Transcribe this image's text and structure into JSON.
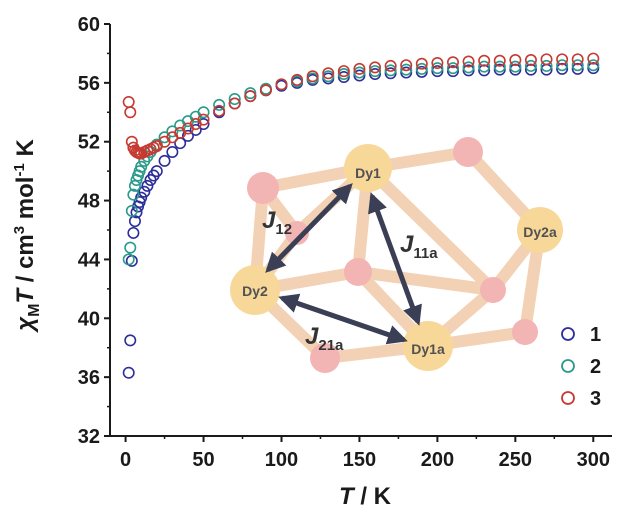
{
  "chart_data": {
    "type": "scatter",
    "xlabel": {
      "italic": "T",
      "rest": " / K"
    },
    "ylabel": {
      "chi": "χ",
      "chi_sub": "M",
      "T": "T",
      "unit_a": " / cm",
      "sup3": "3",
      "unit_b": " mol",
      "supm1": "-1",
      "unit_c": " K"
    },
    "xlim": [
      -10,
      312
    ],
    "ylim": [
      32,
      60
    ],
    "xticks": [
      0,
      50,
      100,
      150,
      200,
      250,
      300
    ],
    "yticks": [
      32,
      36,
      40,
      44,
      48,
      52,
      56,
      60
    ],
    "grid": false,
    "legend_position": "bottom-right",
    "series": [
      {
        "name": "1",
        "color": "#2e2e9a",
        "x": [
          2,
          3,
          4,
          5,
          6,
          7,
          8,
          9,
          10,
          12,
          14,
          16,
          18,
          20,
          25,
          30,
          35,
          40,
          45,
          50,
          60,
          70,
          80,
          90,
          100,
          110,
          120,
          130,
          140,
          150,
          160,
          170,
          180,
          190,
          200,
          210,
          220,
          230,
          240,
          250,
          260,
          270,
          280,
          290,
          300
        ],
        "y": [
          36.3,
          38.5,
          43.9,
          45.8,
          46.6,
          47.2,
          47.6,
          47.9,
          48.2,
          48.6,
          49.0,
          49.4,
          49.7,
          50.0,
          50.7,
          51.3,
          51.9,
          52.4,
          52.8,
          53.2,
          54.0,
          54.6,
          55.1,
          55.5,
          55.8,
          56.0,
          56.2,
          56.3,
          56.4,
          56.5,
          56.6,
          56.65,
          56.7,
          56.75,
          56.8,
          56.8,
          56.85,
          56.85,
          56.9,
          56.9,
          56.9,
          56.9,
          56.95,
          56.95,
          57.0
        ]
      },
      {
        "name": "2",
        "color": "#2a9a8a",
        "x": [
          2,
          3,
          4,
          5,
          6,
          7,
          8,
          9,
          10,
          12,
          14,
          16,
          18,
          20,
          25,
          30,
          35,
          40,
          45,
          50,
          60,
          70,
          80,
          90,
          100,
          110,
          120,
          130,
          140,
          150,
          160,
          170,
          180,
          190,
          200,
          210,
          220,
          230,
          240,
          250,
          260,
          270,
          280,
          290,
          300
        ],
        "y": [
          44.0,
          44.8,
          47.3,
          48.4,
          49.0,
          49.4,
          49.7,
          50.0,
          50.3,
          50.7,
          51.0,
          51.3,
          51.6,
          51.8,
          52.3,
          52.7,
          53.1,
          53.4,
          53.7,
          54.0,
          54.5,
          54.9,
          55.3,
          55.6,
          55.9,
          56.1,
          56.3,
          56.45,
          56.6,
          56.7,
          56.8,
          56.85,
          56.9,
          56.95,
          57.0,
          57.0,
          57.05,
          57.1,
          57.1,
          57.1,
          57.15,
          57.15,
          57.2,
          57.2,
          57.2
        ]
      },
      {
        "name": "3",
        "color": "#c63a32",
        "x": [
          2,
          3,
          4,
          5,
          6,
          7,
          8,
          9,
          10,
          12,
          14,
          16,
          18,
          20,
          25,
          30,
          35,
          40,
          45,
          50,
          60,
          70,
          80,
          90,
          100,
          110,
          120,
          130,
          140,
          150,
          160,
          170,
          180,
          190,
          200,
          210,
          220,
          230,
          240,
          250,
          260,
          270,
          280,
          290,
          300
        ],
        "y": [
          54.7,
          54.0,
          52.0,
          51.6,
          51.4,
          51.3,
          51.25,
          51.2,
          51.2,
          51.3,
          51.4,
          51.5,
          51.6,
          51.7,
          52.0,
          52.3,
          52.6,
          52.9,
          53.2,
          53.5,
          54.1,
          54.6,
          55.1,
          55.5,
          55.9,
          56.2,
          56.45,
          56.65,
          56.8,
          56.95,
          57.05,
          57.15,
          57.2,
          57.3,
          57.35,
          57.4,
          57.45,
          57.5,
          57.5,
          57.55,
          57.55,
          57.6,
          57.6,
          57.6,
          57.65
        ]
      }
    ],
    "inset": {
      "atom_labels": [
        "Dy1",
        "Dy2",
        "Dy1a",
        "Dy2a"
      ],
      "couplings": [
        {
          "symbol": "J",
          "sub": "12"
        },
        {
          "symbol": "J",
          "sub": "11a"
        },
        {
          "symbol": "J",
          "sub": "21a"
        }
      ],
      "colors": {
        "dy_atom": "#f6d288",
        "bridge_atom": "#f2a8a8",
        "bond": "#f2c9a8",
        "arrow": "#3a3f55"
      }
    }
  }
}
